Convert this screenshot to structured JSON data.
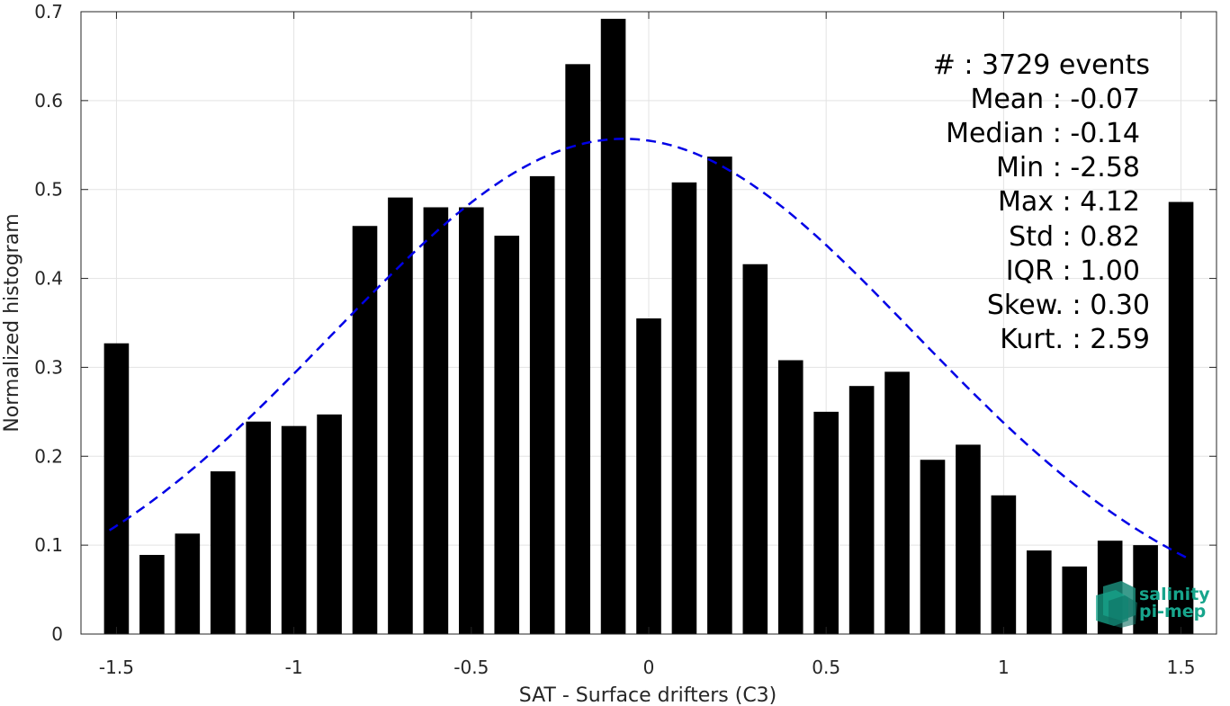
{
  "chart_data": {
    "type": "bar",
    "xlabel": "SAT - Surface drifters (C3)",
    "ylabel": "Normalized histogram",
    "xlim": [
      -1.6,
      1.6
    ],
    "ylim": [
      0,
      0.7
    ],
    "xticks": [
      -1.5,
      -1,
      -0.5,
      0,
      0.5,
      1,
      1.5
    ],
    "xtick_labels": [
      "-1.5",
      "-1",
      "-0.5",
      "0",
      "0.5",
      "1",
      "1.5"
    ],
    "yticks": [
      0,
      0.1,
      0.2,
      0.3,
      0.4,
      0.5,
      0.6,
      0.7
    ],
    "ytick_labels": [
      "0",
      "0.1",
      "0.2",
      "0.3",
      "0.4",
      "0.5",
      "0.6",
      "0.7"
    ],
    "grid": true,
    "bar_color": "#000000",
    "bin_width": 0.1,
    "bins": [
      {
        "x": -1.5,
        "y": 0.327
      },
      {
        "x": -1.4,
        "y": 0.089
      },
      {
        "x": -1.3,
        "y": 0.113
      },
      {
        "x": -1.2,
        "y": 0.183
      },
      {
        "x": -1.1,
        "y": 0.239
      },
      {
        "x": -1.0,
        "y": 0.234
      },
      {
        "x": -0.9,
        "y": 0.247
      },
      {
        "x": -0.8,
        "y": 0.459
      },
      {
        "x": -0.7,
        "y": 0.491
      },
      {
        "x": -0.6,
        "y": 0.48
      },
      {
        "x": -0.5,
        "y": 0.48
      },
      {
        "x": -0.4,
        "y": 0.448
      },
      {
        "x": -0.3,
        "y": 0.515
      },
      {
        "x": -0.2,
        "y": 0.641
      },
      {
        "x": -0.1,
        "y": 0.692
      },
      {
        "x": 0.0,
        "y": 0.355
      },
      {
        "x": 0.1,
        "y": 0.508
      },
      {
        "x": 0.2,
        "y": 0.537
      },
      {
        "x": 0.3,
        "y": 0.416
      },
      {
        "x": 0.4,
        "y": 0.308
      },
      {
        "x": 0.5,
        "y": 0.25
      },
      {
        "x": 0.6,
        "y": 0.279
      },
      {
        "x": 0.7,
        "y": 0.295
      },
      {
        "x": 0.8,
        "y": 0.196
      },
      {
        "x": 0.9,
        "y": 0.213
      },
      {
        "x": 1.0,
        "y": 0.156
      },
      {
        "x": 1.1,
        "y": 0.094
      },
      {
        "x": 1.2,
        "y": 0.076
      },
      {
        "x": 1.3,
        "y": 0.105
      },
      {
        "x": 1.4,
        "y": 0.1
      },
      {
        "x": 1.5,
        "y": 0.486
      }
    ],
    "fit_curve": {
      "style": "dashed",
      "color": "#0000e6",
      "mean": -0.07,
      "std": 0.82,
      "peak": 0.557,
      "x_range": [
        -1.52,
        1.52
      ]
    },
    "annotations": [
      "#  : 3729 events",
      "Mean : -0.07",
      "Median : -0.14",
      "Min : -2.58",
      "Max : 4.12",
      "Std : 0.82",
      "IQR : 1.00",
      "Skew. : 0.30",
      "Kurt. : 2.59"
    ]
  },
  "logo": {
    "line1": "salinity",
    "line2": "pi-mep",
    "color": "#17a58c"
  }
}
